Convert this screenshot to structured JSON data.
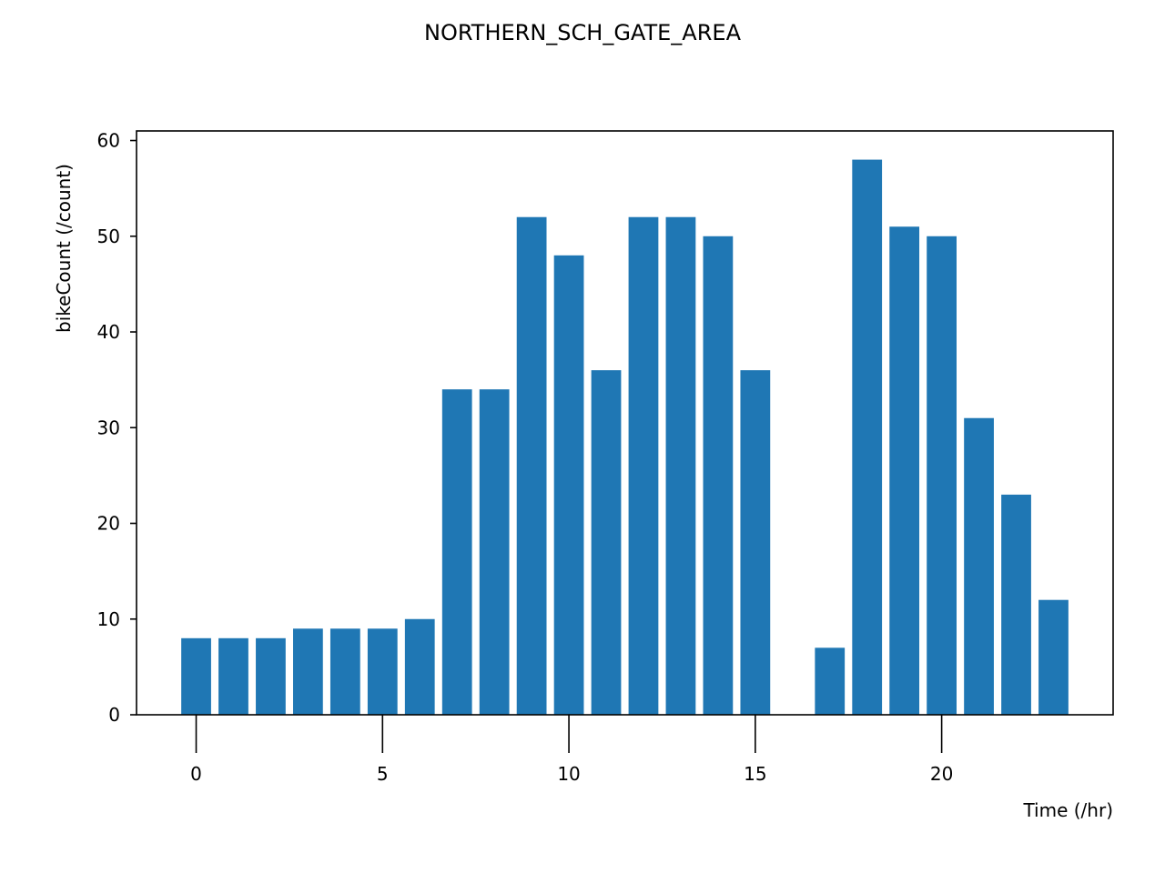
{
  "chart_data": {
    "type": "bar",
    "title": "NORTHERN_SCH_GATE_AREA",
    "xlabel": "Time (/hr)",
    "ylabel": "bikeCount (/count)",
    "x": [
      0,
      1,
      2,
      3,
      4,
      5,
      6,
      7,
      8,
      9,
      10,
      11,
      12,
      13,
      14,
      15,
      16,
      17,
      18,
      19,
      20,
      21,
      22,
      23
    ],
    "values": [
      8,
      8,
      8,
      9,
      9,
      9,
      10,
      34,
      34,
      52,
      48,
      36,
      52,
      52,
      50,
      36,
      0,
      7,
      58,
      51,
      50,
      31,
      23,
      12
    ],
    "xlim": [
      -1.6,
      24.6
    ],
    "ylim": [
      0,
      61
    ],
    "xticks": [
      0,
      5,
      10,
      15,
      20
    ],
    "yticks": [
      0,
      10,
      20,
      30,
      40,
      50,
      60
    ],
    "grid": false,
    "bar_color": "#1f77b4"
  }
}
